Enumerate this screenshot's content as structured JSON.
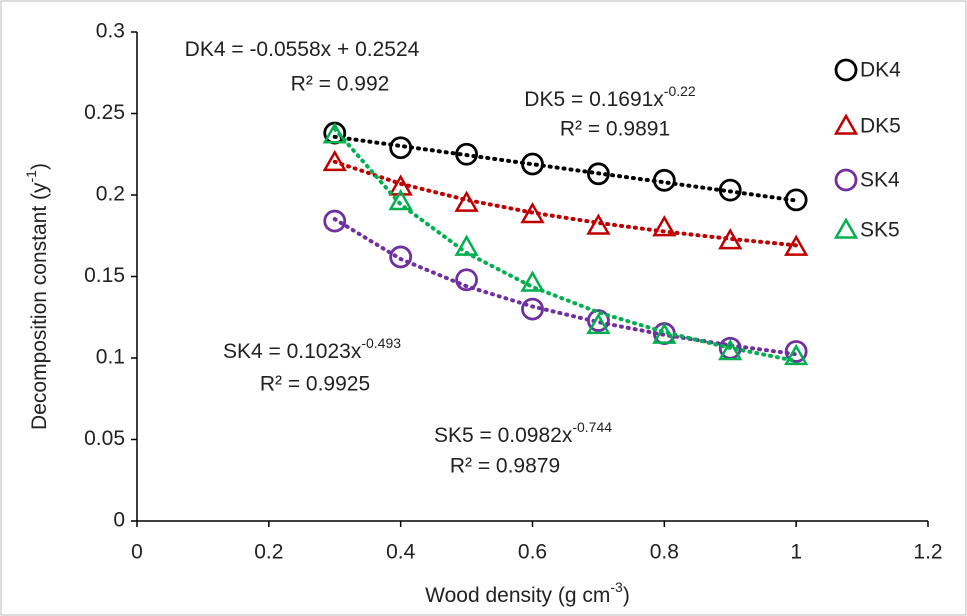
{
  "chart_data": {
    "type": "scatter",
    "x_label": {
      "text": "Wood density (g cm",
      "sup": "-3",
      "tail": ")"
    },
    "y_label": {
      "text": "Decomposition constant (y",
      "sup": "-1",
      "tail": ")"
    },
    "xlim": [
      0,
      1.2
    ],
    "xticks": [
      0,
      0.2,
      0.4,
      0.6,
      0.8,
      1,
      1.2
    ],
    "ylim": [
      0,
      0.3
    ],
    "yticks": [
      0,
      0.05,
      0.1,
      0.15,
      0.2,
      0.25,
      0.3
    ],
    "grid": false,
    "legend": "right",
    "x": [
      0.3,
      0.4,
      0.5,
      0.6,
      0.7,
      0.8,
      0.9,
      1.0
    ],
    "series": [
      {
        "name": "DK4",
        "color": "#000000",
        "marker": "circle",
        "values": [
          0.238,
          0.229,
          0.225,
          0.219,
          0.213,
          0.209,
          0.203,
          0.197
        ],
        "trendline": [
          0.2357,
          0.2301,
          0.2245,
          0.2189,
          0.2133,
          0.2078,
          0.2022,
          0.1966
        ],
        "equation": {
          "text": "DK4 = -0.0558x + 0.2524",
          "r2": "R² = 0.992"
        }
      },
      {
        "name": "DK5",
        "color": "#c00000",
        "marker": "triangle",
        "values": [
          0.22,
          0.205,
          0.195,
          0.188,
          0.181,
          0.18,
          0.172,
          0.168
        ],
        "trendline": [
          0.2204,
          0.2069,
          0.197,
          0.1892,
          0.1829,
          0.1776,
          0.1731,
          0.1691
        ],
        "equation": {
          "text": "DK5 = 0.1691x",
          "sup": "-0.22",
          "r2": "R² = 0.9891"
        }
      },
      {
        "name": "SK4",
        "color": "#7030a0",
        "marker": "circle",
        "values": [
          0.184,
          0.162,
          0.148,
          0.13,
          0.123,
          0.115,
          0.106,
          0.104
        ],
        "trendline": [
          0.1852,
          0.1607,
          0.144,
          0.1316,
          0.122,
          0.1142,
          0.1078,
          0.1023
        ],
        "equation": {
          "text": "SK4 = 0.1023x",
          "sup": "-0.493",
          "r2": "R² = 0.9925"
        }
      },
      {
        "name": "SK5",
        "color": "#00b050",
        "marker": "triangle",
        "values": [
          0.237,
          0.196,
          0.168,
          0.146,
          0.12,
          0.114,
          0.104,
          0.101
        ],
        "trendline": [
          0.2405,
          0.1942,
          0.1645,
          0.1436,
          0.128,
          0.1159,
          0.1062,
          0.0982
        ],
        "equation": {
          "text": "SK5 = 0.0982x",
          "sup": "-0.744",
          "r2": "R² = 0.9879"
        }
      }
    ]
  }
}
